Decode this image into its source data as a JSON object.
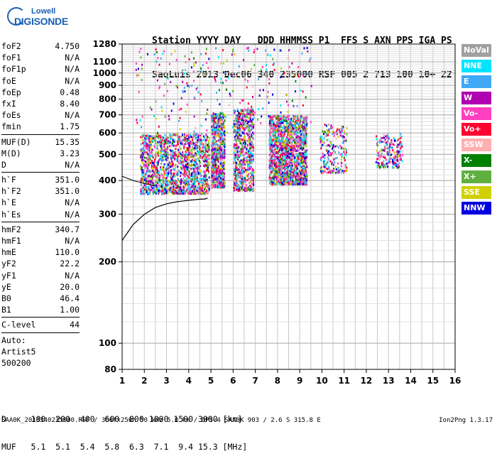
{
  "logo": {
    "brand_top": "Lowell",
    "brand_bottom": "DIGISONDE"
  },
  "header": {
    "line1": "Station YYYY DAY   DDD HHMMSS P1  FFS S AXN PPS IGA PS",
    "line2": "SaoLuis 2013 Dec06 340 235000 RSF 005 2 713 100 10+ 22"
  },
  "params": {
    "group1": [
      {
        "name": "foF2",
        "value": "4.750"
      },
      {
        "name": "foF1",
        "value": "N/A"
      },
      {
        "name": "foF1p",
        "value": "N/A"
      },
      {
        "name": "foE",
        "value": "N/A"
      },
      {
        "name": "foEp",
        "value": "0.48"
      },
      {
        "name": "fxI",
        "value": "8.40"
      },
      {
        "name": "foEs",
        "value": "N/A"
      },
      {
        "name": "fmin",
        "value": "1.75"
      }
    ],
    "group2": [
      {
        "name": "MUF(D)",
        "value": "15.35"
      },
      {
        "name": "M(D)",
        "value": "3.23"
      },
      {
        "name": "D",
        "value": "N/A"
      }
    ],
    "group3": [
      {
        "name": "h`F",
        "value": "351.0"
      },
      {
        "name": "h`F2",
        "value": "351.0"
      },
      {
        "name": "h`E",
        "value": "N/A"
      },
      {
        "name": "h`Es",
        "value": "N/A"
      }
    ],
    "group4": [
      {
        "name": "hmF2",
        "value": "340.7"
      },
      {
        "name": "hmF1",
        "value": "N/A"
      },
      {
        "name": "hmE",
        "value": "110.0"
      },
      {
        "name": "yF2",
        "value": "22.2"
      },
      {
        "name": "yF1",
        "value": "N/A"
      },
      {
        "name": "yE",
        "value": "20.0"
      },
      {
        "name": "B0",
        "value": "46.4"
      },
      {
        "name": "B1",
        "value": "1.00"
      }
    ],
    "group5": [
      {
        "name": "C-level",
        "value": "44"
      }
    ],
    "auto_lines": [
      "Auto:",
      "Artist5",
      "500200"
    ]
  },
  "legend": [
    {
      "label": "NoVal",
      "color": "#a0a0a0"
    },
    {
      "label": "NNE",
      "color": "#00e5ff"
    },
    {
      "label": "E",
      "color": "#3fa9f5"
    },
    {
      "label": "W",
      "color": "#b000b0"
    },
    {
      "label": "Vo-",
      "color": "#ff40c0"
    },
    {
      "label": "Vo+",
      "color": "#ff0030"
    },
    {
      "label": "SSW",
      "color": "#ffb0b0"
    },
    {
      "label": "X-",
      "color": "#008000"
    },
    {
      "label": "X+",
      "color": "#60b040"
    },
    {
      "label": "SSE",
      "color": "#d0d000"
    },
    {
      "label": "NNW",
      "color": "#0000e0"
    }
  ],
  "chart_data": {
    "type": "scatter",
    "xlim": [
      1,
      16
    ],
    "ylim": [
      80,
      1280
    ],
    "yscale": "log",
    "x_ticks": [
      "1",
      "2",
      "3",
      "4",
      "5",
      "6",
      "7",
      "8",
      "9",
      "10",
      "11",
      "12",
      "13",
      "14",
      "15",
      "16"
    ],
    "y_ticks": [
      "80",
      "100",
      "200",
      "300",
      "400",
      "500",
      "600",
      "700",
      "800",
      "900",
      "1000",
      "1100",
      "1280"
    ],
    "grid": true,
    "trace": [
      [
        1.0,
        240
      ],
      [
        1.5,
        275
      ],
      [
        2.0,
        300
      ],
      [
        2.5,
        318
      ],
      [
        3.0,
        328
      ],
      [
        3.5,
        334
      ],
      [
        4.0,
        338
      ],
      [
        4.5,
        341
      ],
      [
        4.75,
        342
      ],
      [
        4.85,
        345
      ]
    ],
    "trace2": [
      [
        1.0,
        415
      ],
      [
        1.5,
        400
      ],
      [
        2.0,
        390
      ],
      [
        2.5,
        382
      ]
    ],
    "clusters": [
      {
        "x": [
          1.8,
          4.9
        ],
        "y": [
          360,
          600
        ],
        "density": "high"
      },
      {
        "x": [
          5.0,
          5.6
        ],
        "y": [
          380,
          720
        ],
        "density": "medium"
      },
      {
        "x": [
          6.0,
          6.9
        ],
        "y": [
          370,
          740
        ],
        "density": "medium"
      },
      {
        "x": [
          7.6,
          9.3
        ],
        "y": [
          390,
          700
        ],
        "density": "high"
      },
      {
        "x": [
          9.9,
          11.1
        ],
        "y": [
          430,
          650
        ],
        "density": "low"
      },
      {
        "x": [
          12.4,
          13.6
        ],
        "y": [
          450,
          600
        ],
        "density": "low"
      }
    ]
  },
  "footer": {
    "d_row": "D     100  200  400  600  800 1000 1500 3000 [km]",
    "muf_row": "MUF   5.1  5.1  5.4  5.8  6.3  7.1  9.4 15.3 [MHz]",
    "info": "SAA0K_2013340235000.RSF / 300fx256h 50 kHz 5.0 km / DPS-4 SAA0K 903 / 2.6 S 315.8 E",
    "version": "Ion2Png 1.3.17"
  }
}
